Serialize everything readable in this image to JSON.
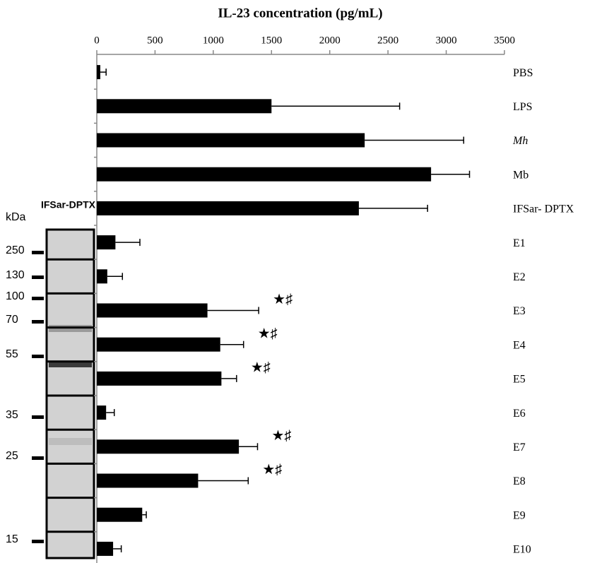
{
  "chart_data": {
    "type": "bar",
    "orientation": "horizontal",
    "title": "IL-23 concentration (pg/mL)",
    "categories": [
      "PBS",
      "LPS",
      "Mh",
      "Mb",
      "IFSar- DPTX",
      "E1",
      "E2",
      "E3",
      "E4",
      "E5",
      "E6",
      "E7",
      "E8",
      "E9",
      "E10"
    ],
    "series": [
      {
        "color": "#000000",
        "values": [
          30,
          1500,
          2300,
          2870,
          2250,
          160,
          90,
          950,
          1060,
          1070,
          80,
          1220,
          870,
          390,
          140
        ],
        "errors": [
          50,
          1100,
          850,
          330,
          590,
          210,
          130,
          440,
          200,
          130,
          70,
          160,
          430,
          35,
          70
        ]
      }
    ],
    "annotations": [
      {
        "category": "E3",
        "text": "★♯"
      },
      {
        "category": "E4",
        "text": "★♯"
      },
      {
        "category": "E5",
        "text": "★♯"
      },
      {
        "category": "E7",
        "text": "★♯"
      },
      {
        "category": "E8",
        "text": "★♯"
      }
    ],
    "xlim": [
      0,
      3500
    ],
    "xticks": [
      0,
      500,
      1000,
      1500,
      2000,
      2500,
      3000,
      3500
    ],
    "grid": false
  },
  "gel": {
    "label": "IFSar-DPTX",
    "unit_label": "kDa",
    "markers": [
      "250",
      "130",
      "100",
      "70",
      "55",
      "35",
      "25",
      "15"
    ]
  }
}
